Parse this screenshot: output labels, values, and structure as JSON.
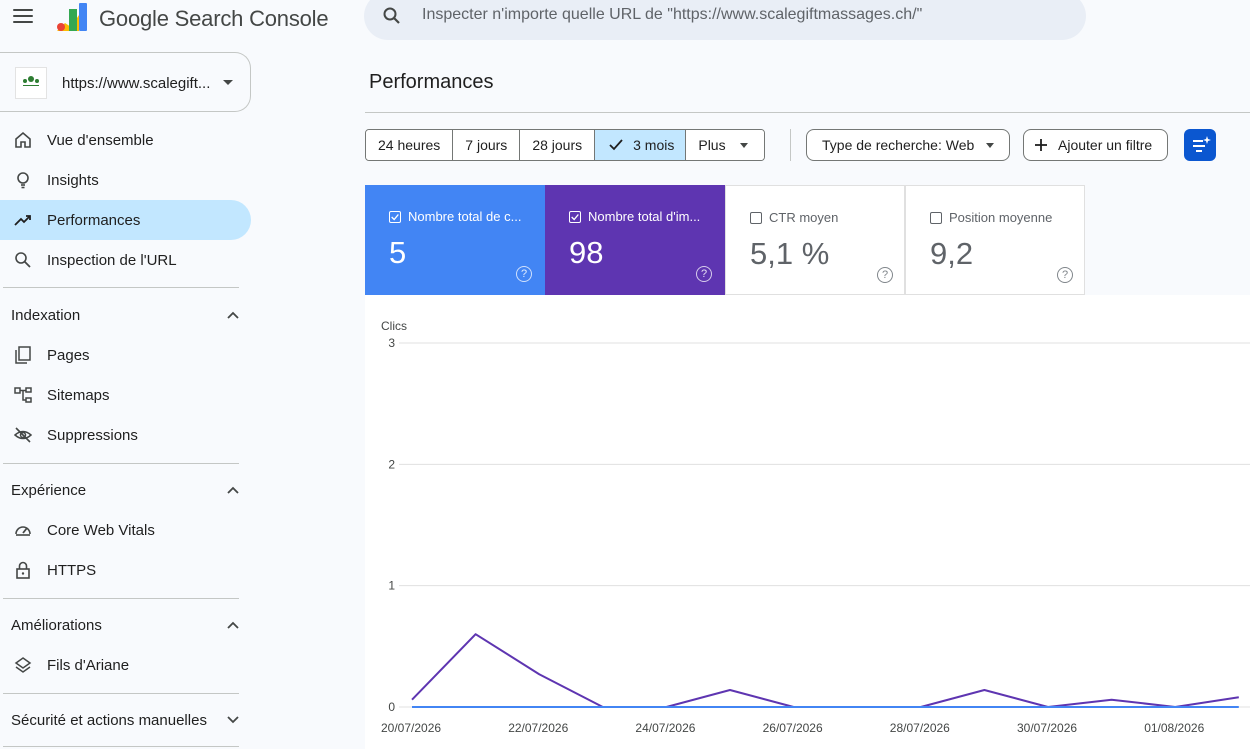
{
  "app": {
    "name": "Google Search Console"
  },
  "search": {
    "placeholder": "Inspecter n'importe quelle URL de \"https://www.scalegiftmassages.ch/\""
  },
  "property": {
    "label": "https://www.scalegift..."
  },
  "sidebar": {
    "top_items": [
      {
        "label": "Vue d'ensemble",
        "icon": "home-icon"
      },
      {
        "label": "Insights",
        "icon": "lightbulb-icon"
      },
      {
        "label": "Performances",
        "icon": "trending-up-icon",
        "active": true
      },
      {
        "label": "Inspection de l'URL",
        "icon": "search-icon"
      }
    ],
    "sections": [
      {
        "title": "Indexation",
        "expanded": true,
        "items": [
          {
            "label": "Pages",
            "icon": "pages-icon"
          },
          {
            "label": "Sitemaps",
            "icon": "sitemap-icon"
          },
          {
            "label": "Suppressions",
            "icon": "eye-off-icon"
          }
        ]
      },
      {
        "title": "Expérience",
        "expanded": true,
        "items": [
          {
            "label": "Core Web Vitals",
            "icon": "gauge-icon"
          },
          {
            "label": "HTTPS",
            "icon": "lock-icon"
          }
        ]
      },
      {
        "title": "Améliorations",
        "expanded": true,
        "items": [
          {
            "label": "Fils d'Ariane",
            "icon": "layers-icon"
          }
        ]
      },
      {
        "title": "Sécurité et actions manuelles",
        "expanded": false,
        "items": []
      }
    ]
  },
  "main": {
    "title": "Performances",
    "date_ranges": [
      "24 heures",
      "7 jours",
      "28 jours",
      "3 mois",
      "Plus"
    ],
    "selected_range": "3 mois",
    "search_type_chip": "Type de recherche: Web",
    "add_filter_chip": "Ajouter un filtre",
    "metrics": [
      {
        "title": "Nombre total de c...",
        "value": "5",
        "checked": true,
        "color": "#4285f4"
      },
      {
        "title": "Nombre total d'im...",
        "value": "98",
        "checked": true,
        "color": "#5e35b1"
      },
      {
        "title": "CTR moyen",
        "value": "5,1 %",
        "checked": false
      },
      {
        "title": "Position moyenne",
        "value": "9,2",
        "checked": false
      }
    ]
  },
  "chart_data": {
    "type": "line",
    "ylabel": "Clics",
    "ylim": [
      0,
      3
    ],
    "yticks": [
      "0",
      "1",
      "2",
      "3"
    ],
    "x_tick_labels": [
      "20/07/2026",
      "22/07/2026",
      "24/07/2026",
      "26/07/2026",
      "28/07/2026",
      "30/07/2026",
      "01/08/2026"
    ],
    "x": [
      "20/07/2026",
      "21/07/2026",
      "22/07/2026",
      "23/07/2026",
      "24/07/2026",
      "25/07/2026",
      "26/07/2026",
      "27/07/2026",
      "28/07/2026",
      "29/07/2026",
      "30/07/2026",
      "31/07/2026",
      "01/08/2026",
      "02/08/2026"
    ],
    "series": [
      {
        "color": "#5e35b1",
        "values": [
          0.06,
          0.6,
          0.27,
          0,
          0,
          0.14,
          0,
          0,
          0,
          0.14,
          0,
          0.06,
          0,
          0.08
        ]
      },
      {
        "color": "#4285f4",
        "values": [
          0,
          0,
          0,
          0,
          0,
          0,
          0,
          0,
          0,
          0,
          0,
          0,
          0,
          0
        ]
      }
    ]
  }
}
